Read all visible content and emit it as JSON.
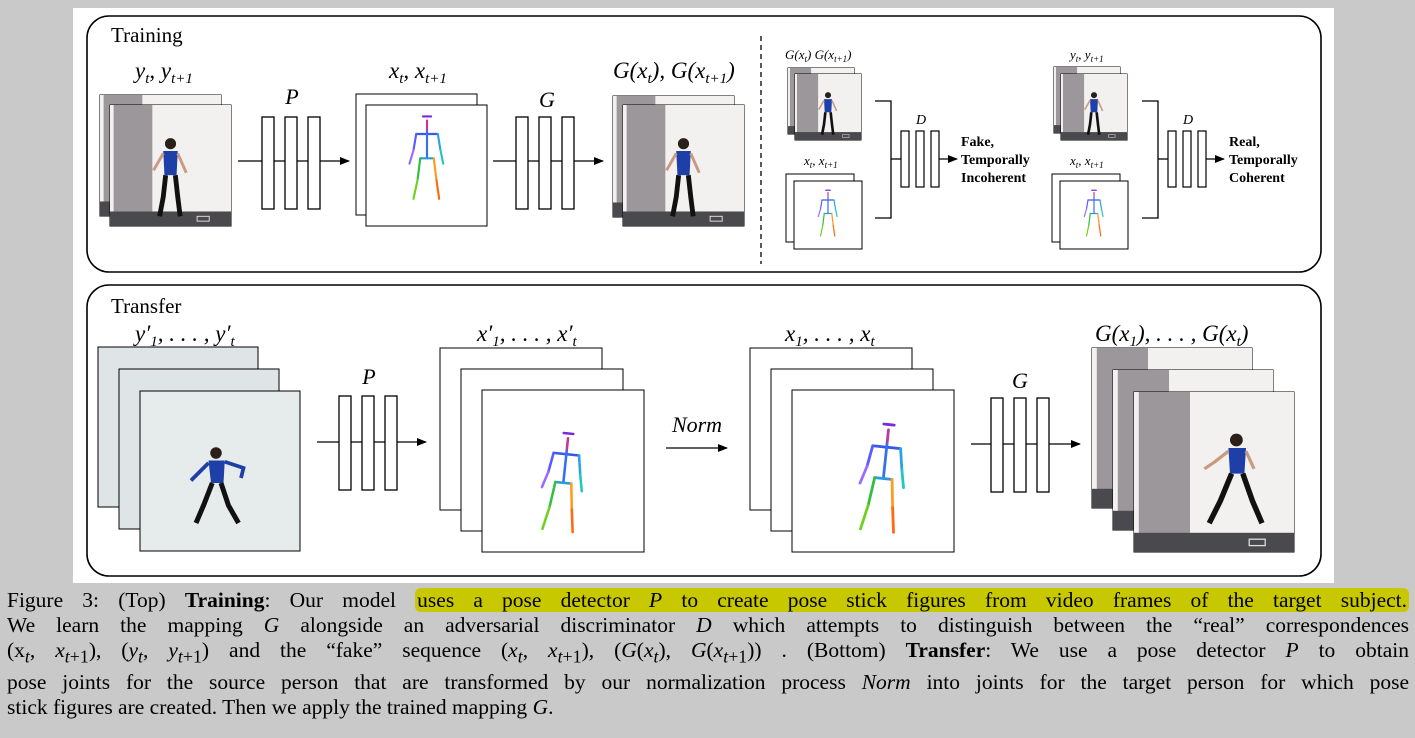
{
  "training": {
    "panel_label": "Training",
    "label_y_frames": "y",
    "label_y_sub1": "t",
    "label_y_sub2": "t+1",
    "label_P": "P",
    "label_x_frames": "x",
    "label_G": "G",
    "label_Gx": "G(x",
    "label_D": "D",
    "fake_label": [
      "Fake,",
      "Temporally",
      "Incoherent"
    ],
    "real_label": [
      "Real,",
      "Temporally",
      "Coherent"
    ],
    "fake_color": "#e8001c",
    "real_color": "#13a017"
  },
  "transfer": {
    "panel_label": "Transfer",
    "label_P": "P",
    "label_norm": "Norm",
    "label_G": "G"
  },
  "caption": {
    "figure_number": "Figure 3:",
    "top_tag": "(Top)",
    "training_bold": "Training",
    "line1_pre": ": Our model",
    "line1_highlight": "uses a pose detector",
    "line1_highlight_var": "P",
    "line1_highlight_post": "to create pose stick figures from video frames of the target subject.",
    "line2_a": "We learn the mapping",
    "line2_G": "G",
    "line2_b": "alongside an adversarial discriminator",
    "line2_D": "D",
    "line2_c": "which attempts to distinguish between the “real” correspondences",
    "line3_a": "(x",
    "line3_b": "and the “fake” sequence",
    "line3_c": ". (Bottom)",
    "transfer_bold": "Transfer",
    "line3_d": ": We use a pose detector",
    "line3_P": "P",
    "line3_e": "to obtain",
    "line4": "pose joints for the source person that are transformed by our normalization process",
    "line4_norm": "Norm",
    "line4_b": "into joints for the target person for which pose",
    "line5": "stick figures are created. Then we apply the trained mapping",
    "line5_G": "G",
    "line5_end": "."
  },
  "colors": {
    "highlight": "#c8c800",
    "background": "#c9c9c9",
    "wall": "#ececec",
    "door": "#9a9499",
    "shirt": "#1f3fa8"
  }
}
